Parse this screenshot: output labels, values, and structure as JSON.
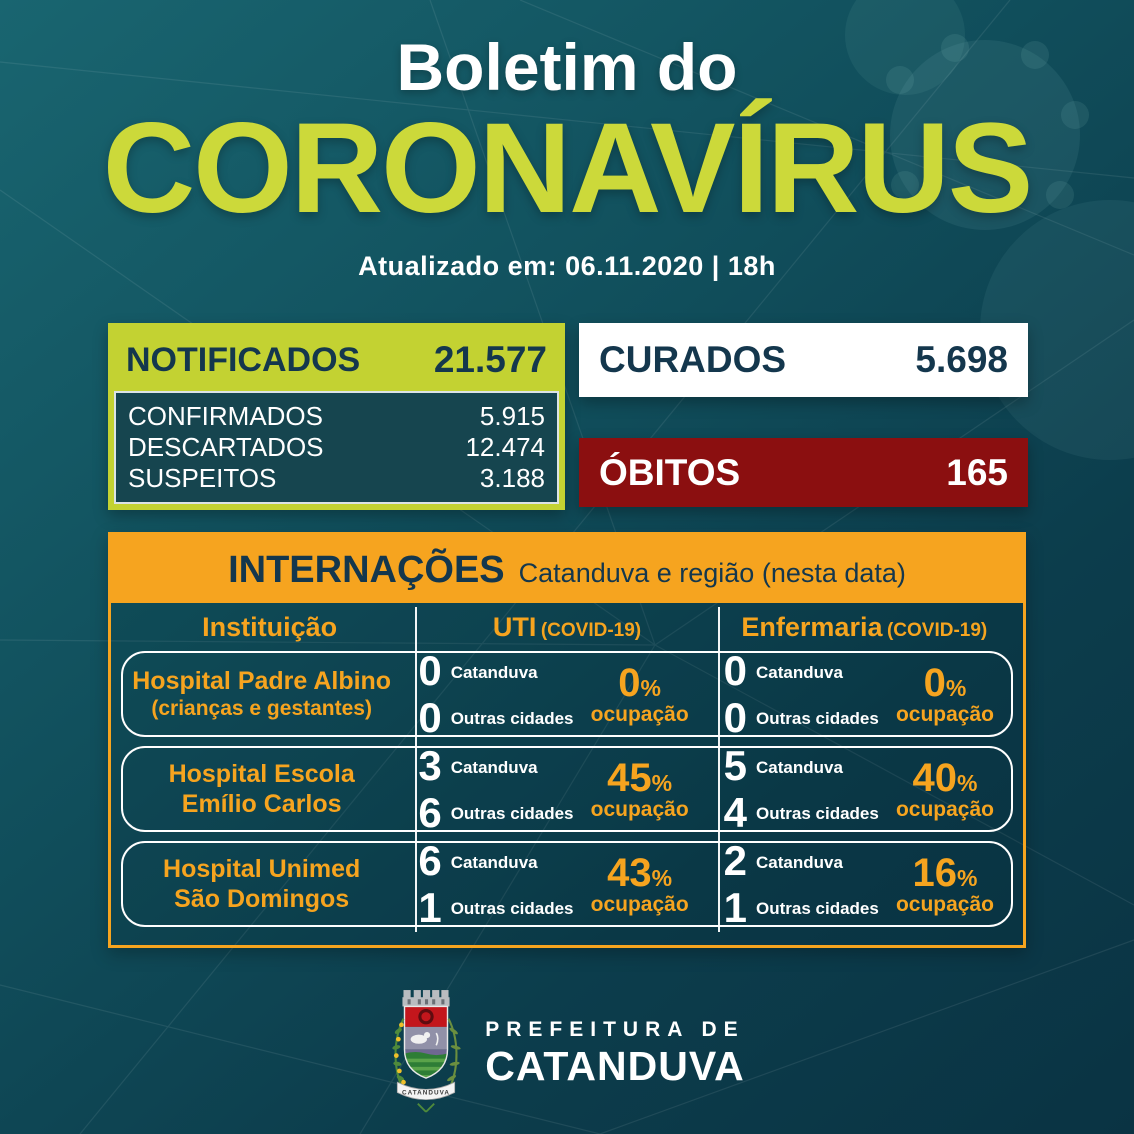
{
  "title": {
    "line1": "Boletim do",
    "line2": "CORONAVÍRUS",
    "updated": "Atualizado em: 06.11.2020 | 18h"
  },
  "stats": {
    "notificados": {
      "label": "NOTIFICADOS",
      "value": "21.577"
    },
    "breakdown": [
      {
        "label": "CONFIRMADOS",
        "value": "5.915"
      },
      {
        "label": "DESCARTADOS",
        "value": "12.474"
      },
      {
        "label": "SUSPEITOS",
        "value": "3.188"
      }
    ],
    "curados": {
      "label": "CURADOS",
      "value": "5.698"
    },
    "obitos": {
      "label": "ÓBITOS",
      "value": "165"
    }
  },
  "internacoes": {
    "title": "INTERNAÇÕES",
    "subtitle": "Catanduva e região (nesta data)",
    "columns": {
      "institution": "Instituição",
      "uti": "UTI",
      "uti_note": "(COVID-19)",
      "enfermaria": "Enfermaria",
      "enfermaria_note": "(COVID-19)"
    },
    "labels": {
      "catanduva": "Catanduva",
      "outras": "Outras cidades",
      "ocupacao": "ocupação",
      "pct_sign": "%"
    },
    "rows": [
      {
        "name_lines": [
          "Hospital Padre Albino"
        ],
        "sub": "(crianças e gestantes)",
        "uti": {
          "catanduva": "0",
          "outras": "0",
          "pct": "0"
        },
        "enf": {
          "catanduva": "0",
          "outras": "0",
          "pct": "0"
        }
      },
      {
        "name_lines": [
          "Hospital Escola",
          "Emílio Carlos"
        ],
        "sub": "",
        "uti": {
          "catanduva": "3",
          "outras": "6",
          "pct": "45"
        },
        "enf": {
          "catanduva": "5",
          "outras": "4",
          "pct": "40"
        }
      },
      {
        "name_lines": [
          "Hospital Unimed",
          "São Domingos"
        ],
        "sub": "",
        "uti": {
          "catanduva": "6",
          "outras": "1",
          "pct": "43"
        },
        "enf": {
          "catanduva": "2",
          "outras": "1",
          "pct": "16"
        }
      }
    ]
  },
  "footer": {
    "org_line1": "PREFEITURA DE",
    "org_line2": "CATANDUVA",
    "crest_banner": "CATANDUVA"
  },
  "colors": {
    "lime": "#c3d232",
    "lime_title": "#ccd93a",
    "orange": "#f6a41f",
    "dark_red": "#8b0f10",
    "navy": "#14374d",
    "teal_top": "#196570",
    "teal_bottom": "#0a3343",
    "panel_dark": "#16454f",
    "white": "#ffffff"
  }
}
